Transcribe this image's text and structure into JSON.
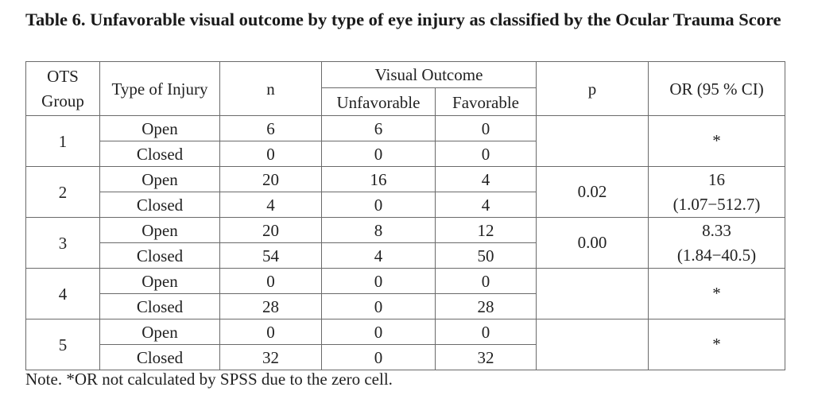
{
  "caption": {
    "text": "Table 6. Unfavorable visual outcome by type of eye injury as classified by the Ocular Trauma Score"
  },
  "table": {
    "headers": {
      "group": "OTS Group",
      "type": "Type of Injury",
      "n": "n",
      "visual_outcome": "Visual Outcome",
      "unfavorable": "Unfavorable",
      "favorable": "Favorable",
      "p": "p",
      "or": "OR (95 % CI)"
    },
    "groups": [
      {
        "group": "1",
        "rows": [
          {
            "type": "Open",
            "n": "6",
            "unfavorable": "6",
            "favorable": "0"
          },
          {
            "type": "Closed",
            "n": "0",
            "unfavorable": "0",
            "favorable": "0"
          }
        ],
        "p": "",
        "or_value": "*",
        "or_ci": ""
      },
      {
        "group": "2",
        "rows": [
          {
            "type": "Open",
            "n": "20",
            "unfavorable": "16",
            "favorable": "4"
          },
          {
            "type": "Closed",
            "n": "4",
            "unfavorable": "0",
            "favorable": "4"
          }
        ],
        "p": "0.02",
        "or_value": "16",
        "or_ci": "(1.07−512.7)"
      },
      {
        "group": "3",
        "rows": [
          {
            "type": "Open",
            "n": "20",
            "unfavorable": "8",
            "favorable": "12"
          },
          {
            "type": "Closed",
            "n": "54",
            "unfavorable": "4",
            "favorable": "50"
          }
        ],
        "p": "0.00",
        "or_value": "8.33",
        "or_ci": "(1.84−40.5)"
      },
      {
        "group": "4",
        "rows": [
          {
            "type": "Open",
            "n": "0",
            "unfavorable": "0",
            "favorable": "0"
          },
          {
            "type": "Closed",
            "n": "28",
            "unfavorable": "0",
            "favorable": "28"
          }
        ],
        "p": "",
        "or_value": "*",
        "or_ci": ""
      },
      {
        "group": "5",
        "rows": [
          {
            "type": "Open",
            "n": "0",
            "unfavorable": "0",
            "favorable": "0"
          },
          {
            "type": "Closed",
            "n": "32",
            "unfavorable": "0",
            "favorable": "32"
          }
        ],
        "p": "",
        "or_value": "*",
        "or_ci": ""
      }
    ]
  },
  "note": {
    "text": "Note. *OR not calculated by SPSS due to the zero cell."
  }
}
